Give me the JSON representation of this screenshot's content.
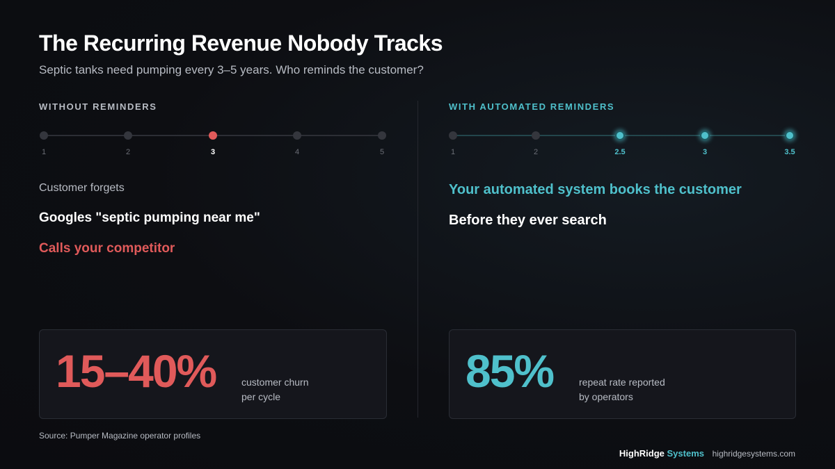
{
  "header": {
    "title": "The Recurring Revenue Nobody Tracks",
    "subtitle": "Septic tanks need pumping every 3–5 years. Who reminds the customer?"
  },
  "left": {
    "heading": "WITHOUT REMINDERS",
    "timeline": [
      "1",
      "2",
      "3",
      "4",
      "5"
    ],
    "lines": [
      "Customer forgets",
      "Googles \"septic pumping near me\"",
      "Calls your competitor"
    ],
    "stat": {
      "value": "15–40%",
      "caption": [
        "customer churn",
        "per cycle"
      ]
    }
  },
  "right": {
    "heading": "WITH AUTOMATED REMINDERS",
    "timeline": [
      "1",
      "2",
      "2.5",
      "3",
      "3.5"
    ],
    "lines": [
      "Your automated system books the customer",
      "Before they ever search"
    ],
    "stat": {
      "value": "85%",
      "caption": [
        "repeat rate reported",
        "by operators"
      ]
    }
  },
  "footer": {
    "source": "Source: Pumper Magazine operator profiles",
    "brand": "HighRidge",
    "brand_accent": "Systems",
    "url": "highridgesystems.com"
  }
}
